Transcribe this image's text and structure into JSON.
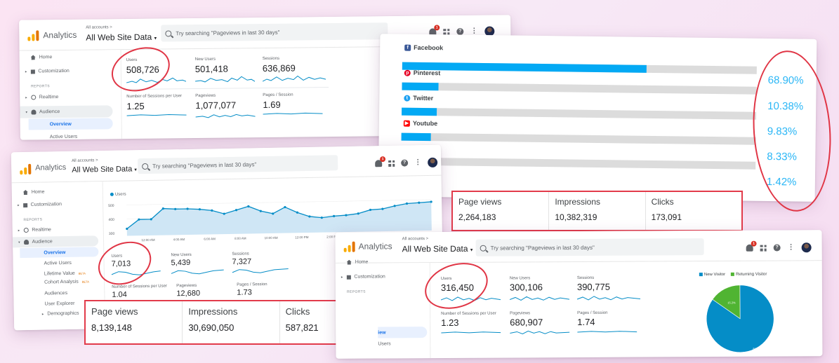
{
  "analytics": {
    "app_name": "Analytics",
    "account_small": "All accounts >",
    "property": "All Web Site Data",
    "search_placeholder": "Try searching \"Pageviews in last 30 days\"",
    "notif_count": "1",
    "nav": {
      "home": "Home",
      "customization": "Customization",
      "reports_heading": "REPORTS",
      "realtime": "Realtime",
      "audience": "Audience",
      "overview": "Overview",
      "active_users": "Active Users",
      "lifetime_value": "Lifetime Value",
      "cohort_analysis": "Cohort Analysis",
      "beta": "BETA",
      "audiences": "Audiences",
      "user_explorer": "User Explorer",
      "demographics": "Demographics"
    },
    "metric_labels": {
      "users": "Users",
      "new_users": "New Users",
      "sessions": "Sessions",
      "sessions_per_user": "Number of Sessions per User",
      "pageviews": "Pageviews",
      "pages_per_session": "Pages / Session"
    }
  },
  "dashboard_1": {
    "users": "508,726",
    "new_users": "501,418",
    "sessions": "636,869",
    "sessions_per_user": "1.25",
    "pageviews": "1,077,077",
    "pages_per_session": "1.69"
  },
  "dashboard_2": {
    "legend": "Users",
    "y_ticks": [
      "500",
      "400",
      "300"
    ],
    "x_ticks": [
      "12:00 AM",
      "4:00 AM",
      "6:00 AM",
      "8:00 AM",
      "10:00 AM",
      "12:00 PM",
      "2:00 PM",
      "4:00 PM",
      "6:00 PM",
      "10:00 PM"
    ],
    "users": "7,013",
    "new_users": "5,439",
    "sessions": "7,327",
    "sessions_per_user": "1.04",
    "pageviews": "12,680",
    "pages_per_session": "1.73",
    "sidebar_partial": "Overview"
  },
  "dashboard_3": {
    "users": "316,450",
    "new_users": "300,106",
    "sessions": "390,775",
    "sessions_per_user": "1.23",
    "pageviews": "680,907",
    "pages_per_session": "1.74",
    "nav_view": "iew",
    "nav_users": "Users",
    "pie_legend": [
      "New Visitor",
      "Returning Visitor"
    ],
    "pie_values": [
      84.8,
      15.2
    ],
    "pie_labels": [
      "84.8%",
      "15.2%"
    ],
    "pie_colors": [
      "#058dc7",
      "#50b432"
    ]
  },
  "social": {
    "rows": [
      {
        "name": "Facebook",
        "pct_text": "68.90%",
        "pct": 68.9,
        "icon": "facebook-icon",
        "color": "#3b5998"
      },
      {
        "name": "Pinterest",
        "pct_text": "10.38%",
        "pct": 10.38,
        "icon": "pinterest-icon",
        "color": "#e60023"
      },
      {
        "name": "Twitter",
        "pct_text": "9.83%",
        "pct": 9.83,
        "icon": "twitter-icon",
        "color": "#1da1f2"
      },
      {
        "name": "Youtube",
        "pct_text": "8.33%",
        "pct": 8.33,
        "icon": "youtube-icon",
        "color": "#ff0000"
      },
      {
        "name": "",
        "pct_text": "1.42%",
        "pct": 1.42,
        "icon": "",
        "color": ""
      }
    ],
    "bar_color": "#03a9f4"
  },
  "summaries": {
    "labels": {
      "page_views": "Page views",
      "impressions": "Impressions",
      "clicks": "Clicks"
    },
    "a": {
      "page_views": "2,264,183",
      "impressions": "10,382,319",
      "clicks": "173,091"
    },
    "b": {
      "page_views": "8,139,148",
      "impressions": "30,690,050",
      "clicks": "587,821"
    }
  },
  "colors": {
    "accent_red": "#e03545",
    "ga_blue": "#058dc7"
  }
}
